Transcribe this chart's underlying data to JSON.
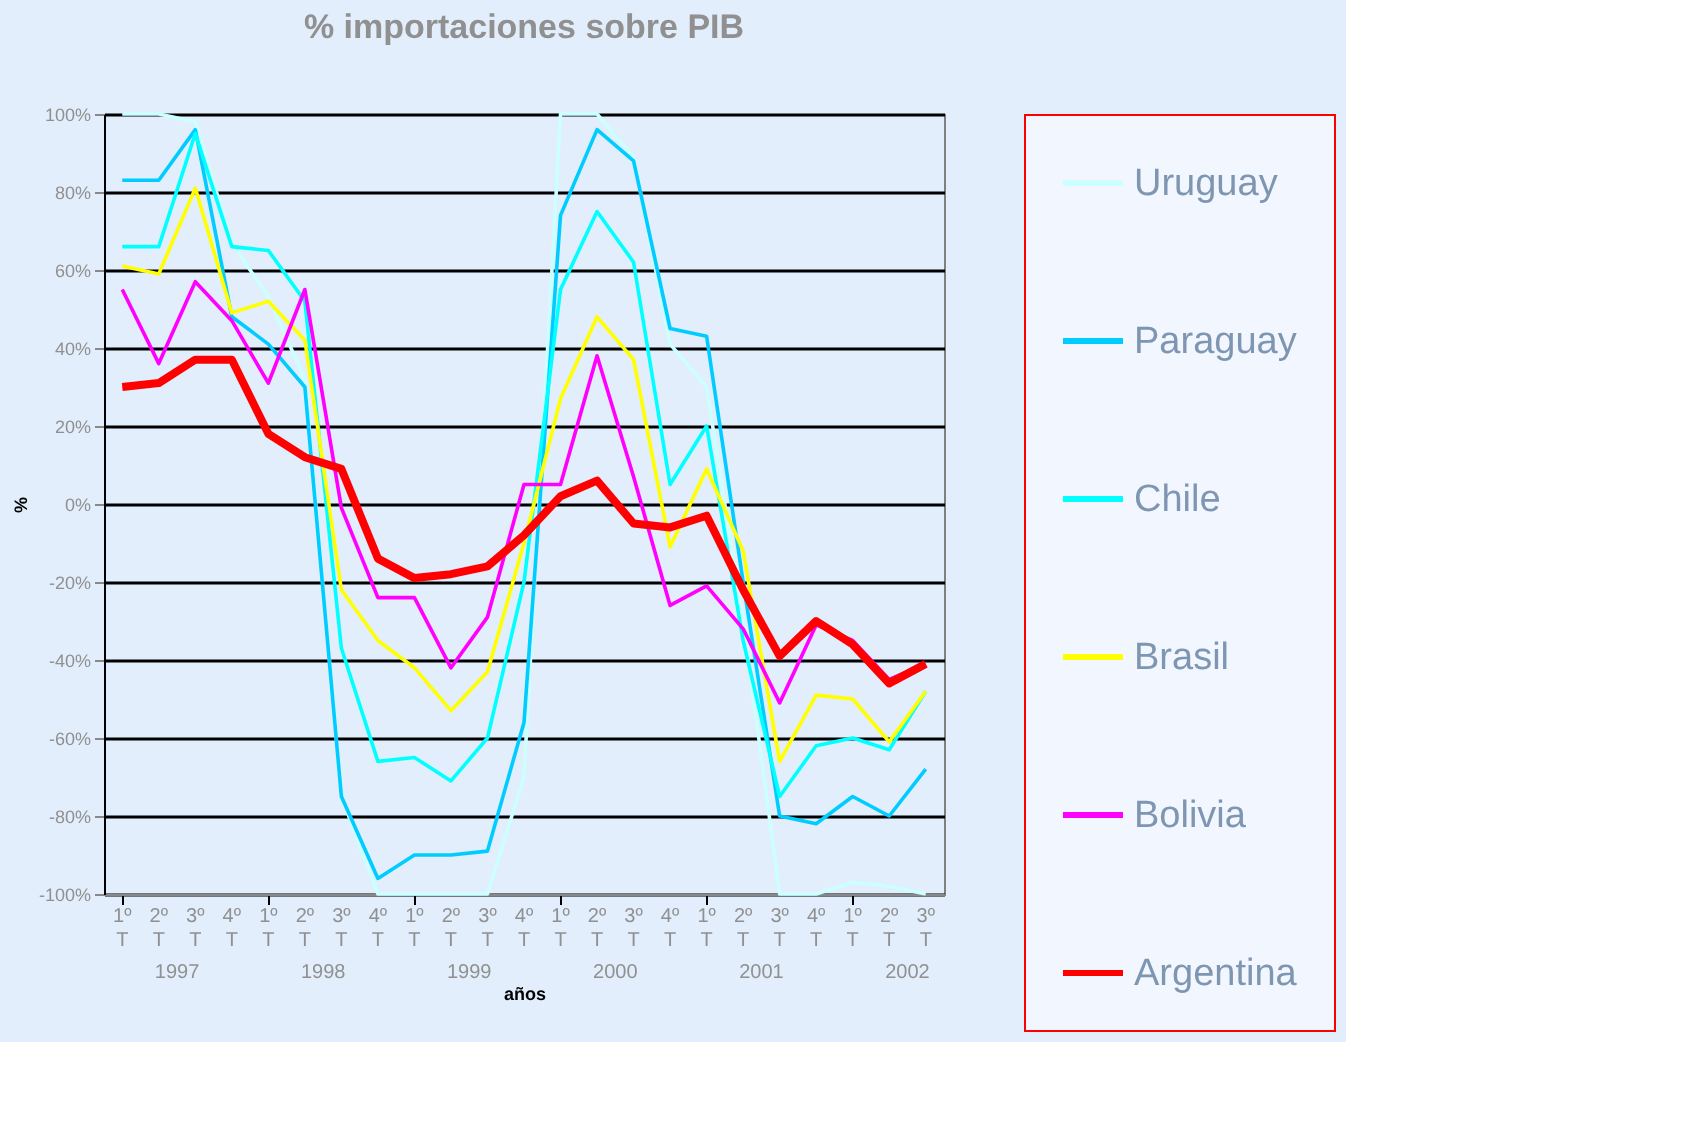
{
  "chart_data": {
    "type": "line",
    "title": "% importaciones sobre PIB",
    "xlabel": "años",
    "ylabel": "%",
    "categories": [
      "1º T",
      "2º T",
      "3º T",
      "4º T",
      "1º T",
      "2º T",
      "3º T",
      "4º T",
      "1º T",
      "2º T",
      "3º T",
      "4º T",
      "1º T",
      "2º T",
      "3º T",
      "4º T",
      "1º T",
      "2º T",
      "3º T",
      "4º T",
      "1º T",
      "2º T",
      "3º T"
    ],
    "annotations": [
      "1997",
      "1998",
      "1999",
      "2000",
      "2001",
      "2002"
    ],
    "series": [
      {
        "name": "Uruguay",
        "color": "#ccffff",
        "values": [
          100,
          100,
          98,
          67,
          53,
          32,
          -75,
          -100,
          -100,
          -100,
          -100,
          -70,
          100,
          100,
          89,
          41,
          30,
          -30,
          -100,
          -100,
          -97,
          -98,
          -100
        ]
      },
      {
        "name": "Paraguay",
        "color": "#00ccff",
        "values": [
          83,
          83,
          96,
          48,
          41,
          30,
          -75,
          -96,
          -90,
          -90,
          -89,
          -56,
          74,
          96,
          88,
          45,
          43,
          -20,
          -80,
          -82,
          -75,
          -80,
          -68
        ]
      },
      {
        "name": "Chile",
        "color": "#00ffff",
        "values": [
          66,
          66,
          95,
          66,
          65,
          52,
          -37,
          -66,
          -65,
          -71,
          -60,
          -20,
          55,
          75,
          62,
          5,
          20,
          -35,
          -75,
          -62,
          -60,
          -63,
          -48
        ]
      },
      {
        "name": "Brasil",
        "color": "#ffff00",
        "values": [
          61,
          59,
          81,
          49,
          52,
          42,
          -22,
          -35,
          -42,
          -53,
          -43,
          -10,
          27,
          48,
          37,
          -11,
          9,
          -12,
          -66,
          -49,
          -50,
          -61,
          -48
        ]
      },
      {
        "name": "Bolivia",
        "color": "#ff00ff",
        "values": [
          55,
          36,
          57,
          47,
          31,
          55,
          -1,
          -24,
          -24,
          -42,
          -29,
          5,
          5,
          38,
          7,
          -26,
          -21,
          -32,
          -51,
          -31,
          -35,
          -45,
          -41
        ]
      },
      {
        "name": "Argentina",
        "color": "#ff0000",
        "values": [
          30,
          31,
          37,
          37,
          18,
          12,
          9,
          -14,
          -19,
          -18,
          -16,
          -8,
          2,
          6,
          -5,
          -6,
          -3,
          -22,
          -39,
          -30,
          -36,
          -46,
          -41
        ]
      }
    ],
    "ylim": [
      -100,
      100
    ],
    "yticks": [
      {
        "value": -100,
        "label": "-100%"
      },
      {
        "value": -80,
        "label": "-80%"
      },
      {
        "value": -60,
        "label": "-60%"
      },
      {
        "value": -40,
        "label": "-40%"
      },
      {
        "value": -20,
        "label": "-20%"
      },
      {
        "value": 0,
        "label": "0%"
      },
      {
        "value": 20,
        "label": "20%"
      },
      {
        "value": 40,
        "label": "40%"
      },
      {
        "value": 60,
        "label": "60%"
      },
      {
        "value": 80,
        "label": "80%"
      },
      {
        "value": 100,
        "label": "100%"
      }
    ],
    "grid": "y",
    "legend": "right",
    "marker": "none",
    "line_style": "solid"
  }
}
